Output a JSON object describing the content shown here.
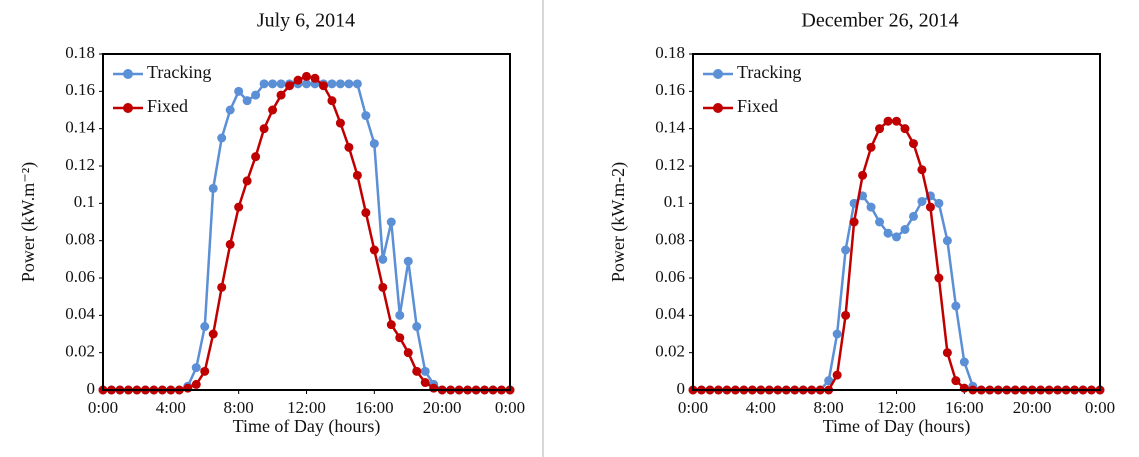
{
  "chart_data": [
    {
      "type": "line",
      "title": "July 6, 2014",
      "x_label": "Time of Day (hours)",
      "y_label": "Power (kW.m⁻²)",
      "x": [
        0,
        0.5,
        1,
        1.5,
        2,
        2.5,
        3,
        3.5,
        4,
        4.5,
        5,
        5.5,
        6,
        6.5,
        7,
        7.5,
        8,
        8.5,
        9,
        9.5,
        10,
        10.5,
        11,
        11.5,
        12,
        12.5,
        13,
        13.5,
        14,
        14.5,
        15,
        15.5,
        16,
        16.5,
        17,
        17.5,
        18,
        18.5,
        19,
        19.5,
        20,
        20.5,
        21,
        21.5,
        22,
        22.5,
        23,
        23.5,
        24
      ],
      "series": [
        {
          "name": "Tracking",
          "color": "#5b8fd6",
          "values": [
            0,
            0,
            0,
            0,
            0,
            0,
            0,
            0,
            0,
            0,
            0.002,
            0.012,
            0.034,
            0.108,
            0.135,
            0.15,
            0.16,
            0.155,
            0.158,
            0.164,
            0.164,
            0.164,
            0.164,
            0.164,
            0.164,
            0.164,
            0.164,
            0.164,
            0.164,
            0.164,
            0.164,
            0.147,
            0.132,
            0.07,
            0.09,
            0.04,
            0.069,
            0.034,
            0.01,
            0.003,
            0,
            0,
            0,
            0,
            0,
            0,
            0,
            0,
            0
          ]
        },
        {
          "name": "Fixed",
          "color": "#c00000",
          "values": [
            0,
            0,
            0,
            0,
            0,
            0,
            0,
            0,
            0,
            0,
            0.001,
            0.003,
            0.01,
            0.03,
            0.055,
            0.078,
            0.098,
            0.112,
            0.125,
            0.14,
            0.15,
            0.158,
            0.163,
            0.166,
            0.168,
            0.167,
            0.163,
            0.155,
            0.143,
            0.13,
            0.115,
            0.095,
            0.075,
            0.055,
            0.035,
            0.028,
            0.02,
            0.01,
            0.004,
            0.001,
            0,
            0,
            0,
            0,
            0,
            0,
            0,
            0,
            0
          ]
        }
      ],
      "xlim": [
        0,
        24
      ],
      "xticks": [
        {
          "value": 0,
          "label": "0:00"
        },
        {
          "value": 4,
          "label": "4:00"
        },
        {
          "value": 8,
          "label": "8:00"
        },
        {
          "value": 12,
          "label": "12:00"
        },
        {
          "value": 16,
          "label": "16:00"
        },
        {
          "value": 20,
          "label": "20:00"
        },
        {
          "value": 24,
          "label": "0:00"
        }
      ],
      "ylim": [
        0,
        0.18
      ],
      "yticks": [
        0,
        0.02,
        0.04,
        0.06,
        0.08,
        0.1,
        0.12,
        0.14,
        0.16,
        0.18
      ],
      "grid": false,
      "legend": "upper left"
    },
    {
      "type": "line",
      "title": "December 26, 2014",
      "x_label": "Time of Day (hours)",
      "y_label": "Power (kW.m-2)",
      "x": [
        0,
        0.5,
        1,
        1.5,
        2,
        2.5,
        3,
        3.5,
        4,
        4.5,
        5,
        5.5,
        6,
        6.5,
        7,
        7.5,
        8,
        8.5,
        9,
        9.5,
        10,
        10.5,
        11,
        11.5,
        12,
        12.5,
        13,
        13.5,
        14,
        14.5,
        15,
        15.5,
        16,
        16.5,
        17,
        17.5,
        18,
        18.5,
        19,
        19.5,
        20,
        20.5,
        21,
        21.5,
        22,
        22.5,
        23,
        23.5,
        24
      ],
      "series": [
        {
          "name": "Tracking",
          "color": "#5b8fd6",
          "values": [
            0,
            0,
            0,
            0,
            0,
            0,
            0,
            0,
            0,
            0,
            0,
            0,
            0,
            0,
            0,
            0,
            0.005,
            0.03,
            0.075,
            0.1,
            0.104,
            0.098,
            0.09,
            0.084,
            0.082,
            0.086,
            0.093,
            0.101,
            0.104,
            0.1,
            0.08,
            0.045,
            0.015,
            0.002,
            0,
            0,
            0,
            0,
            0,
            0,
            0,
            0,
            0,
            0,
            0,
            0,
            0,
            0,
            0
          ]
        },
        {
          "name": "Fixed",
          "color": "#c00000",
          "values": [
            0,
            0,
            0,
            0,
            0,
            0,
            0,
            0,
            0,
            0,
            0,
            0,
            0,
            0,
            0,
            0,
            0,
            0.008,
            0.04,
            0.09,
            0.115,
            0.13,
            0.14,
            0.144,
            0.144,
            0.14,
            0.132,
            0.118,
            0.098,
            0.06,
            0.02,
            0.005,
            0.001,
            0,
            0,
            0,
            0,
            0,
            0,
            0,
            0,
            0,
            0,
            0,
            0,
            0,
            0,
            0,
            0
          ]
        }
      ],
      "xlim": [
        0,
        24
      ],
      "xticks": [
        {
          "value": 0,
          "label": "0:00"
        },
        {
          "value": 4,
          "label": "4:00"
        },
        {
          "value": 8,
          "label": "8:00"
        },
        {
          "value": 12,
          "label": "12:00"
        },
        {
          "value": 16,
          "label": "16:00"
        },
        {
          "value": 20,
          "label": "20:00"
        },
        {
          "value": 24,
          "label": "0:00"
        }
      ],
      "ylim": [
        0,
        0.18
      ],
      "yticks": [
        0,
        0.02,
        0.04,
        0.06,
        0.08,
        0.1,
        0.12,
        0.14,
        0.16,
        0.18
      ],
      "grid": false,
      "legend": "upper left"
    }
  ]
}
